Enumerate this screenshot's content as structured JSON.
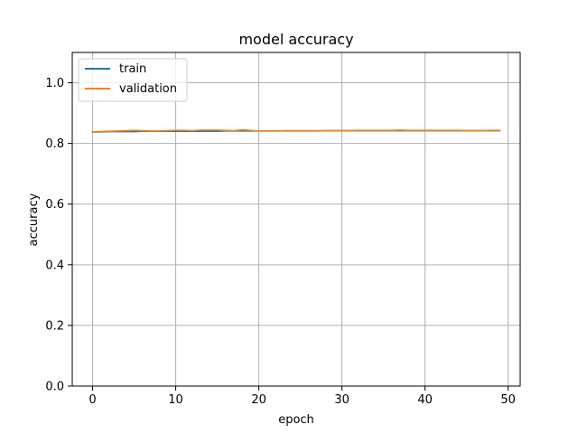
{
  "chart_data": {
    "type": "line",
    "title": "model accuracy",
    "xlabel": "epoch",
    "ylabel": "accuracy",
    "xlim": [
      -2.45,
      51.45
    ],
    "ylim": [
      0.0,
      1.1
    ],
    "xticks": [
      0,
      10,
      20,
      30,
      40,
      50
    ],
    "yticks": [
      0.0,
      0.2,
      0.4,
      0.6,
      0.8,
      1.0
    ],
    "xtick_labels": [
      "0",
      "10",
      "20",
      "30",
      "40",
      "50"
    ],
    "ytick_labels": [
      "0.0",
      "0.2",
      "0.4",
      "0.6",
      "0.8",
      "1.0"
    ],
    "grid": true,
    "legend_position": "top-left",
    "series": [
      {
        "name": "train",
        "color": "#1f77b4",
        "x": [
          0,
          1,
          2,
          3,
          4,
          5,
          6,
          7,
          8,
          9,
          10,
          11,
          12,
          13,
          14,
          15,
          16,
          17,
          18,
          19,
          20,
          21,
          22,
          23,
          24,
          25,
          26,
          27,
          28,
          29,
          30,
          31,
          32,
          33,
          34,
          35,
          36,
          37,
          38,
          39,
          40,
          41,
          42,
          43,
          44,
          45,
          46,
          47,
          48,
          49
        ],
        "values": [
          0.838,
          0.838,
          0.839,
          0.839,
          0.839,
          0.839,
          0.84,
          0.84,
          0.84,
          0.84,
          0.84,
          0.84,
          0.84,
          0.84,
          0.84,
          0.84,
          0.841,
          0.841,
          0.841,
          0.841,
          0.841,
          0.841,
          0.841,
          0.841,
          0.841,
          0.841,
          0.841,
          0.841,
          0.842,
          0.842,
          0.842,
          0.842,
          0.842,
          0.842,
          0.842,
          0.842,
          0.842,
          0.842,
          0.842,
          0.842,
          0.842,
          0.842,
          0.842,
          0.842,
          0.842,
          0.842,
          0.842,
          0.842,
          0.842,
          0.842
        ]
      },
      {
        "name": "validation",
        "color": "#ff7f0e",
        "x": [
          0,
          1,
          2,
          3,
          4,
          5,
          6,
          7,
          8,
          9,
          10,
          11,
          12,
          13,
          14,
          15,
          16,
          17,
          18,
          19,
          20,
          21,
          22,
          23,
          24,
          25,
          26,
          27,
          28,
          29,
          30,
          31,
          32,
          33,
          34,
          35,
          36,
          37,
          38,
          39,
          40,
          41,
          42,
          43,
          44,
          45,
          46,
          47,
          48,
          49
        ],
        "values": [
          0.838,
          0.839,
          0.84,
          0.841,
          0.842,
          0.843,
          0.842,
          0.841,
          0.841,
          0.842,
          0.843,
          0.843,
          0.842,
          0.844,
          0.844,
          0.844,
          0.843,
          0.842,
          0.845,
          0.843,
          0.841,
          0.841,
          0.841,
          0.842,
          0.842,
          0.842,
          0.842,
          0.842,
          0.842,
          0.842,
          0.842,
          0.842,
          0.843,
          0.843,
          0.843,
          0.843,
          0.843,
          0.844,
          0.843,
          0.843,
          0.843,
          0.843,
          0.843,
          0.843,
          0.843,
          0.842,
          0.842,
          0.842,
          0.843,
          0.843
        ]
      }
    ]
  }
}
